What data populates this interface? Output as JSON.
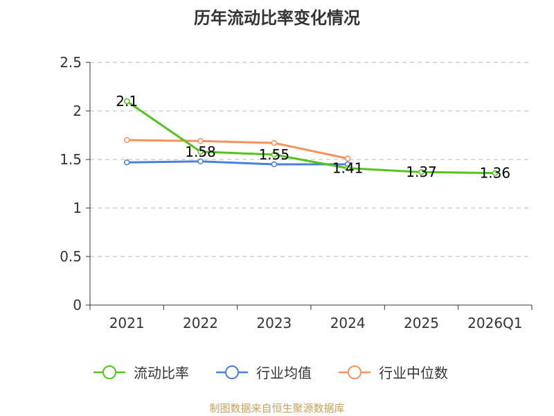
{
  "chart_data": {
    "type": "line",
    "title": "历年流动比率变化情况",
    "categories": [
      "2021",
      "2022",
      "2023",
      "2024",
      "2025",
      "2026Q1"
    ],
    "ylim": [
      0,
      2.5
    ],
    "yticks": [
      "0",
      "0.5",
      "1",
      "1.5",
      "2",
      "2.5"
    ],
    "grid": true,
    "legend_position": "bottom",
    "series": [
      {
        "name": "流动比率",
        "color": "#52c41a",
        "values": [
          2.1,
          1.58,
          1.55,
          1.41,
          1.37,
          1.36
        ],
        "labels": [
          "2.1",
          "1.58",
          "1.55",
          "1.41",
          "1.37",
          "1.36"
        ]
      },
      {
        "name": "行业均值",
        "color": "#4a7fe0",
        "values": [
          1.47,
          1.48,
          1.45,
          1.45,
          null,
          null
        ]
      },
      {
        "name": "行业中位数",
        "color": "#f5935a",
        "values": [
          1.7,
          1.69,
          1.67,
          1.51,
          null,
          null
        ]
      }
    ]
  },
  "source": "制图数据来自恒生聚源数据库"
}
